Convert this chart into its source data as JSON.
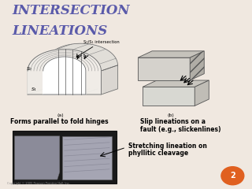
{
  "title_line1": "INTERSECTION",
  "title_line2": "LINEATIONS",
  "title_fontsize": 12,
  "title_color": "#5a5aaa",
  "bg_color": "#f0e8e0",
  "white_bg": "#ffffff",
  "label_a": "(a)",
  "label_b": "(b)",
  "caption_a": "Forms parallel to fold hinges",
  "caption_b1": "Slip lineations on a",
  "caption_b2": "fault (e.g., slickenlines)",
  "caption_c1": "Stretching lineation on",
  "caption_c2": "phyllitic cleavage",
  "intersection_label": "S₀/S₁ intersection",
  "s0_label": "S₀",
  "s1_label": "S₁",
  "orange_circle_color": "#e06020",
  "caption_fontsize": 5.5
}
